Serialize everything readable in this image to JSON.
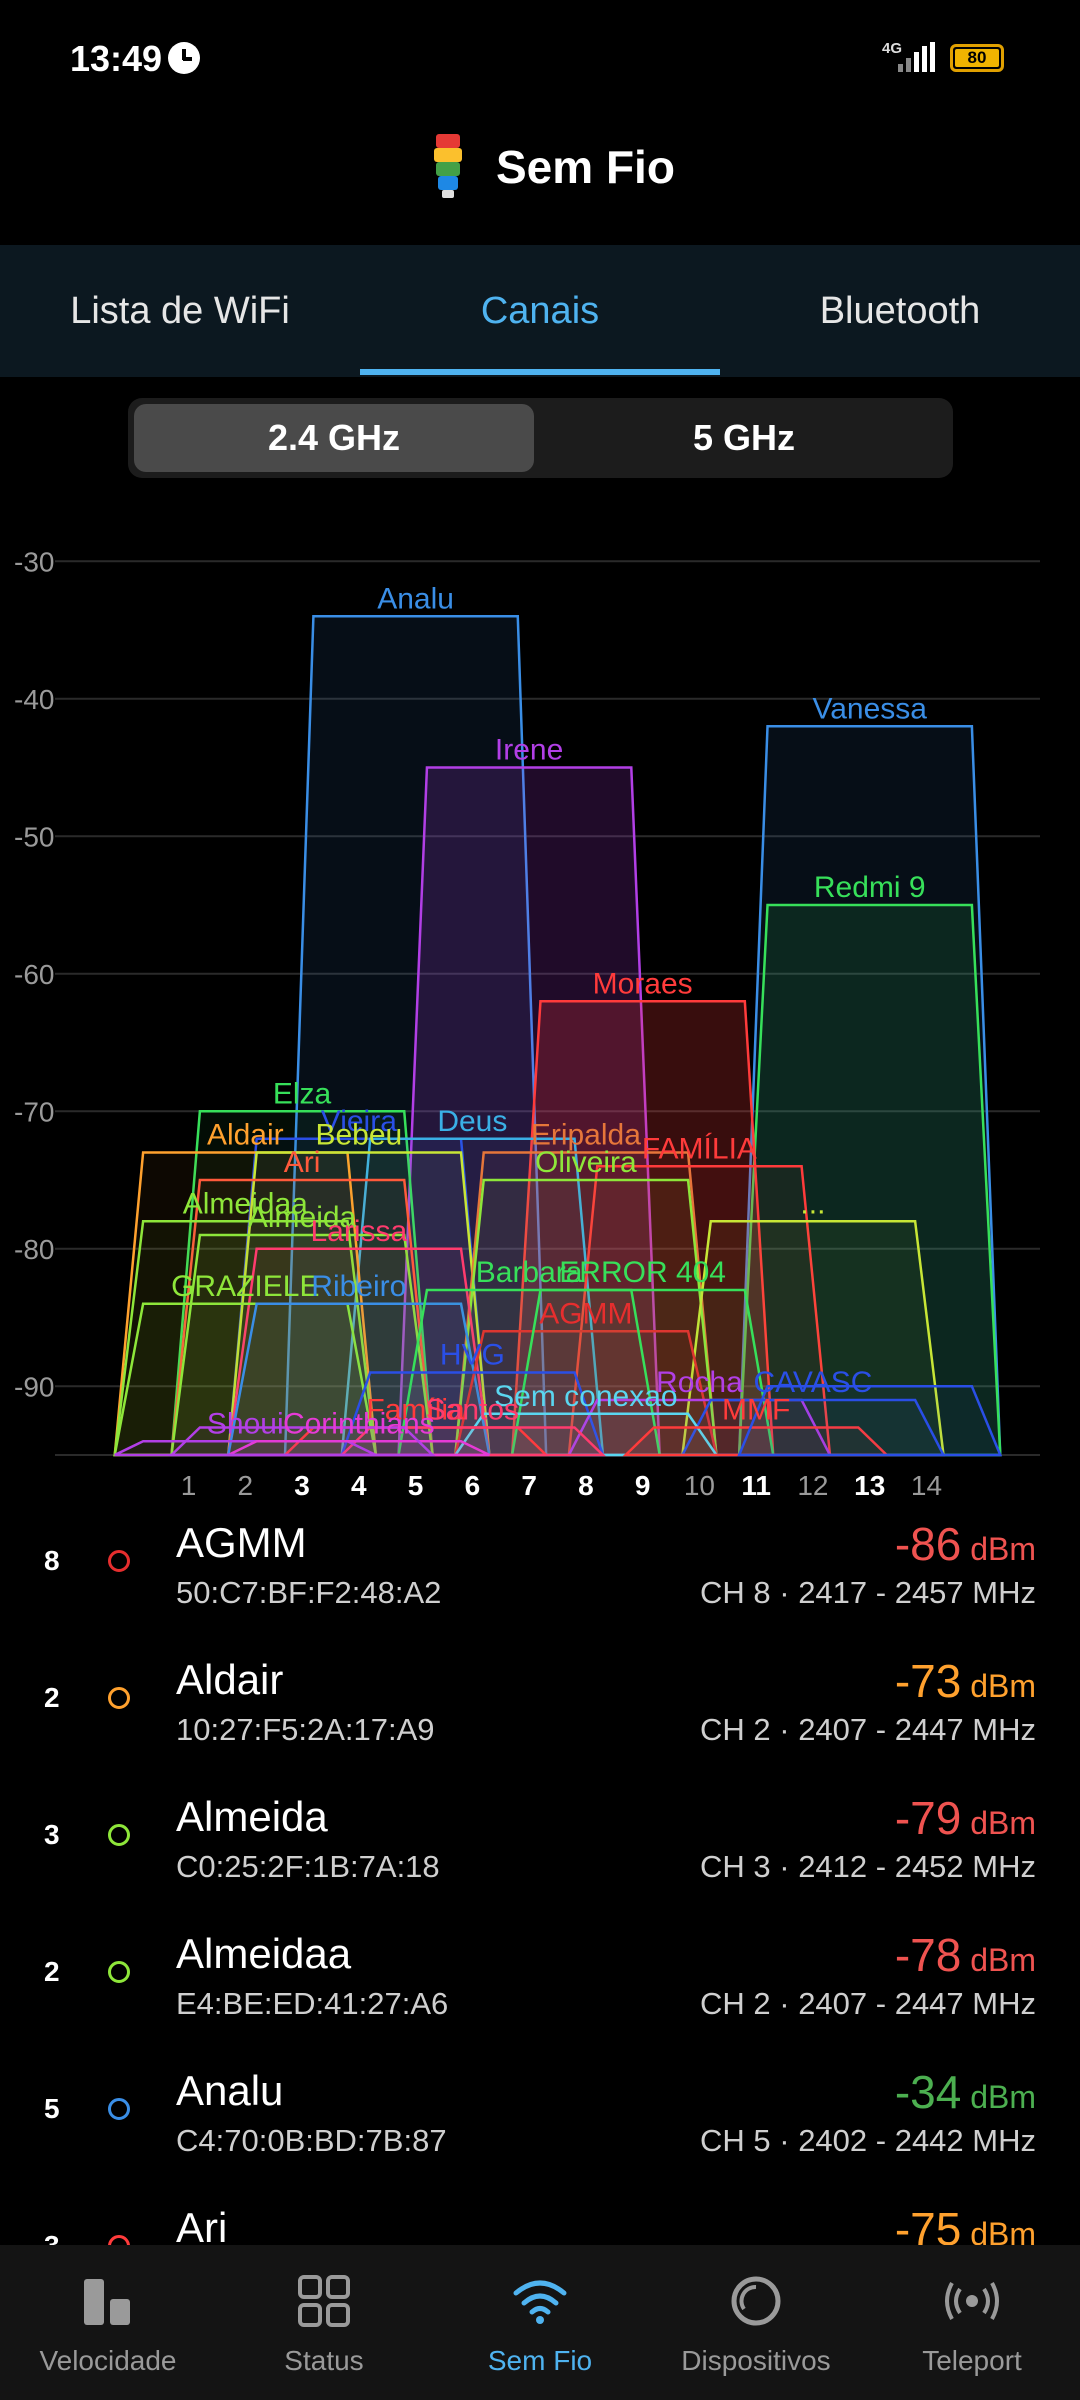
{
  "status_bar": {
    "time": "13:49",
    "network": "4G",
    "battery": "80"
  },
  "app": {
    "title": "Sem Fio"
  },
  "tabs": [
    {
      "label": "Lista de WiFi",
      "active": false
    },
    {
      "label": "Canais",
      "active": true
    },
    {
      "label": "Bluetooth",
      "active": false
    }
  ],
  "band_switch": {
    "options": [
      "2.4 GHz",
      "5 GHz"
    ],
    "selected": "2.4 GHz"
  },
  "chart_data": {
    "type": "area",
    "ylim": [
      -95,
      -30
    ],
    "yticks": [
      -30,
      -40,
      -50,
      -60,
      -70,
      -80,
      -90
    ],
    "xticks": [
      {
        "label": "1",
        "bold": false
      },
      {
        "label": "2",
        "bold": false
      },
      {
        "label": "3",
        "bold": true
      },
      {
        "label": "4",
        "bold": true
      },
      {
        "label": "5",
        "bold": true
      },
      {
        "label": "6",
        "bold": true
      },
      {
        "label": "7",
        "bold": true
      },
      {
        "label": "8",
        "bold": true
      },
      {
        "label": "9",
        "bold": true
      },
      {
        "label": "10",
        "bold": false
      },
      {
        "label": "11",
        "bold": true
      },
      {
        "label": "12",
        "bold": false
      },
      {
        "label": "13",
        "bold": true
      },
      {
        "label": "14",
        "bold": false
      }
    ],
    "xlim": [
      -1,
      16
    ],
    "series": [
      {
        "name": "Analu",
        "channel": 5,
        "dbm": -34,
        "color": "#3a8ee6",
        "fill": "rgba(58,142,230,0.10)"
      },
      {
        "name": "Irene",
        "channel": 7,
        "dbm": -45,
        "color": "#b23fe6",
        "fill": "rgba(178,63,230,0.18)"
      },
      {
        "name": "Vanessa",
        "channel": 13,
        "dbm": -42,
        "color": "#3a8ee6",
        "fill": "rgba(58,142,230,0.10)"
      },
      {
        "name": "Redmi 9",
        "channel": 13,
        "dbm": -55,
        "color": "#37e05a",
        "fill": "rgba(55,224,90,0.12)"
      },
      {
        "name": "Moraes",
        "channel": 9,
        "dbm": -62,
        "color": "#ff3b3b",
        "fill": "rgba(255,59,59,0.22)"
      },
      {
        "name": "Elza",
        "channel": 3,
        "dbm": -70,
        "color": "#37e05a",
        "fill": "rgba(55,224,90,0.06)"
      },
      {
        "name": "Vieira",
        "channel": 4,
        "dbm": -72,
        "color": "#2a4fe6",
        "fill": "rgba(42,79,230,0.05)"
      },
      {
        "name": "Deus",
        "channel": 6,
        "dbm": -72,
        "color": "#3ab0e6",
        "fill": "rgba(58,176,230,0.05)"
      },
      {
        "name": "Aldair",
        "channel": 2,
        "dbm": -73,
        "color": "#ffa12e",
        "fill": "rgba(255,161,46,0.05)"
      },
      {
        "name": "Bebeu",
        "channel": 4,
        "dbm": -73,
        "color": "#c8e636",
        "fill": "rgba(200,230,54,0.05)"
      },
      {
        "name": "Ari",
        "channel": 3,
        "dbm": -75,
        "color": "#ff5a3b",
        "fill": "rgba(255,90,59,0.05)"
      },
      {
        "name": "Eripalda",
        "channel": 8,
        "dbm": -73,
        "color": "#e6763a",
        "fill": "rgba(230,118,58,0.05)"
      },
      {
        "name": "FAMÍLIA",
        "channel": 10,
        "dbm": -74,
        "color": "#ff3b3b",
        "fill": "rgba(255,59,59,0.05)"
      },
      {
        "name": "Oliveira",
        "channel": 8,
        "dbm": -75,
        "color": "#8ee63a",
        "fill": "rgba(142,230,58,0.05)"
      },
      {
        "name": "Almeidaa",
        "channel": 2,
        "dbm": -78,
        "color": "#8ee63a",
        "fill": "rgba(142,230,58,0.05)"
      },
      {
        "name": "Almeida",
        "channel": 3,
        "dbm": -79,
        "color": "#8ee63a",
        "fill": "rgba(142,230,58,0.05)"
      },
      {
        "name": "Larissa",
        "channel": 4,
        "dbm": -80,
        "color": "#ff3b6e",
        "fill": "rgba(255,59,110,0.05)"
      },
      {
        "name": "...",
        "channel": 12,
        "dbm": -78,
        "color": "#c8e636",
        "fill": "rgba(200,230,54,0.05)"
      },
      {
        "name": "GRAZIELE",
        "channel": 2,
        "dbm": -84,
        "color": "#8ee63a",
        "fill": "rgba(142,230,58,0.05)"
      },
      {
        "name": "Ribeiro",
        "channel": 4,
        "dbm": -84,
        "color": "#3a8ee6",
        "fill": "rgba(58,142,230,0.05)"
      },
      {
        "name": "AGMM",
        "channel": 8,
        "dbm": -86,
        "color": "#e62e2e",
        "fill": "rgba(230,46,46,0.05)"
      },
      {
        "name": "Barbara",
        "channel": 7,
        "dbm": -83,
        "color": "#37e05a",
        "fill": "rgba(55,224,90,0.05)"
      },
      {
        "name": "ERROR 404",
        "channel": 9,
        "dbm": -83,
        "color": "#37e05a",
        "fill": "rgba(55,224,90,0.05)"
      },
      {
        "name": "HVG",
        "channel": 6,
        "dbm": -89,
        "color": "#2a4fe6",
        "fill": "rgba(42,79,230,0.05)"
      },
      {
        "name": "Rocha",
        "channel": 10,
        "dbm": -91,
        "color": "#b23fe6",
        "fill": "rgba(178,63,230,0.05)"
      },
      {
        "name": "CAVASC",
        "channel": 12,
        "dbm": -91,
        "color": "#2a4fe6",
        "fill": "rgba(42,79,230,0.05)"
      },
      {
        "name": "Sem conexao",
        "channel": 8,
        "dbm": -92,
        "color": "#5ad6f0",
        "fill": "rgba(90,214,240,0.05)"
      },
      {
        "name": "MMF",
        "channel": 11,
        "dbm": -93,
        "color": "#ff3b3b",
        "fill": "rgba(255,59,59,0.05)"
      },
      {
        "name": "Família",
        "channel": 5,
        "dbm": -93,
        "color": "#ff3b3b",
        "fill": "rgba(255,59,59,0.05)"
      },
      {
        "name": "Santos",
        "channel": 6,
        "dbm": -93,
        "color": "#ff3b6e",
        "fill": "rgba(255,59,110,0.05)"
      },
      {
        "name": "Shoui",
        "channel": 2,
        "dbm": -94,
        "color": "#b23fe6",
        "fill": "rgba(178,63,230,0.05)"
      },
      {
        "name": "Corinthians",
        "channel": 4,
        "dbm": -94,
        "color": "#e63ad6",
        "fill": "rgba(230,58,214,0.05)"
      },
      {
        "name": "",
        "channel": 13,
        "dbm": -90,
        "color": "#2a4fe6",
        "fill": "rgba(42,79,230,0.05)"
      },
      {
        "name": "",
        "channel": 3,
        "dbm": -93,
        "color": "#b23fe6",
        "fill": "rgba(178,63,230,0.05)"
      }
    ]
  },
  "networks": [
    {
      "channel": "8",
      "name": "AGMM",
      "mac": "50:C7:BF:F2:48:A2",
      "dbm": "-86",
      "unit": "dBm",
      "info": "CH 8 · 2417 - 2457 MHz",
      "dot_color": "#e62e2e",
      "dbm_color": "#ef5350"
    },
    {
      "channel": "2",
      "name": "Aldair",
      "mac": "10:27:F5:2A:17:A9",
      "dbm": "-73",
      "unit": "dBm",
      "info": "CH 2 · 2407 - 2447 MHz",
      "dot_color": "#ffa12e",
      "dbm_color": "#ffa12e"
    },
    {
      "channel": "3",
      "name": "Almeida",
      "mac": "C0:25:2F:1B:7A:18",
      "dbm": "-79",
      "unit": "dBm",
      "info": "CH 3 · 2412 - 2452 MHz",
      "dot_color": "#8ee63a",
      "dbm_color": "#ef5350"
    },
    {
      "channel": "2",
      "name": "Almeidaa",
      "mac": "E4:BE:ED:41:27:A6",
      "dbm": "-78",
      "unit": "dBm",
      "info": "CH 2 · 2407 - 2447 MHz",
      "dot_color": "#8ee63a",
      "dbm_color": "#ef5350"
    },
    {
      "channel": "5",
      "name": "Analu",
      "mac": "C4:70:0B:BD:7B:87",
      "dbm": "-34",
      "unit": "dBm",
      "info": "CH 5 · 2402 - 2442 MHz",
      "dot_color": "#3a8ee6",
      "dbm_color": "#4caf50"
    },
    {
      "channel": "3",
      "name": "Ari",
      "mac": "",
      "dbm": "-75",
      "unit": "dBm",
      "info": "",
      "dot_color": "#ff3b3b",
      "dbm_color": "#ffa12e"
    }
  ],
  "bottom_nav": [
    {
      "label": "Velocidade",
      "icon": "speed-bars-icon",
      "active": false
    },
    {
      "label": "Status",
      "icon": "grid-icon",
      "active": false
    },
    {
      "label": "Sem Fio",
      "icon": "wifi-icon",
      "active": true
    },
    {
      "label": "Dispositivos",
      "icon": "ring-icon",
      "active": false
    },
    {
      "label": "Teleport",
      "icon": "teleport-icon",
      "active": false
    }
  ]
}
